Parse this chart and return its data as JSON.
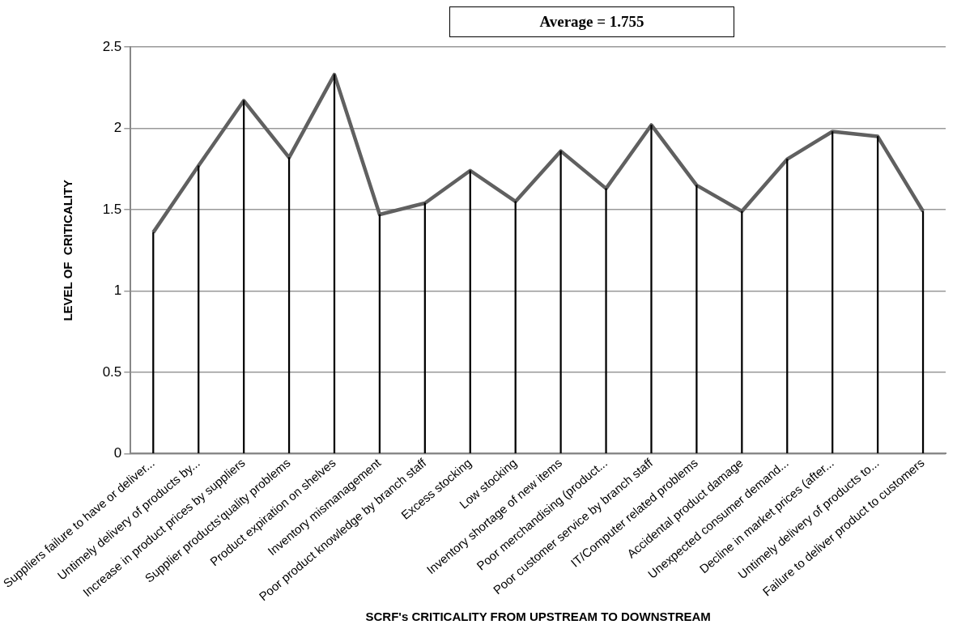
{
  "chart_data": {
    "type": "line",
    "xlabel": "SCRF's CRITICALITY FROM UPSTREAM TO DOWNSTREAM",
    "ylabel": "LEVEL OF  CRITICALITY",
    "annotations": [
      "Average = 1.755"
    ],
    "categories": [
      "Suppliers failure to have or deliver...",
      "Untimely delivery of products by...",
      "Increase in product prices by suppliers",
      "Supplier products'quality problems",
      "Product expiration on shelves",
      "Inventory mismanagement",
      "Poor product knowledge by branch staff",
      "Excess stocking",
      "Low stocking",
      "Inventory shortage of new items",
      "Poor merchandising (product...",
      "Poor customer service by branch staff",
      "IT/Computer related problems",
      "Accidental product damage",
      "Unexpected consumer demand...",
      "Decline in market prices (after...",
      "Untimely delivery of products to...",
      "Failure to deliver product to customers"
    ],
    "series": [
      {
        "type": "bar",
        "color": "#000000",
        "values": [
          1.36,
          1.77,
          2.17,
          1.82,
          2.33,
          1.47,
          1.54,
          1.74,
          1.55,
          1.86,
          1.63,
          2.02,
          1.65,
          1.49,
          1.81,
          1.98,
          1.95,
          1.49
        ]
      },
      {
        "color": "#606060",
        "values": [
          1.36,
          1.77,
          2.17,
          1.82,
          2.33,
          1.47,
          1.54,
          1.74,
          1.55,
          1.86,
          1.63,
          2.02,
          1.65,
          1.49,
          1.81,
          1.98,
          1.95,
          1.49
        ]
      }
    ],
    "ylim": [
      0,
      2.5
    ],
    "yticks": [
      0,
      0.5,
      1,
      1.5,
      2,
      2.5
    ],
    "grid": "y",
    "legend": false,
    "marker": "none",
    "line_style": "solid"
  }
}
